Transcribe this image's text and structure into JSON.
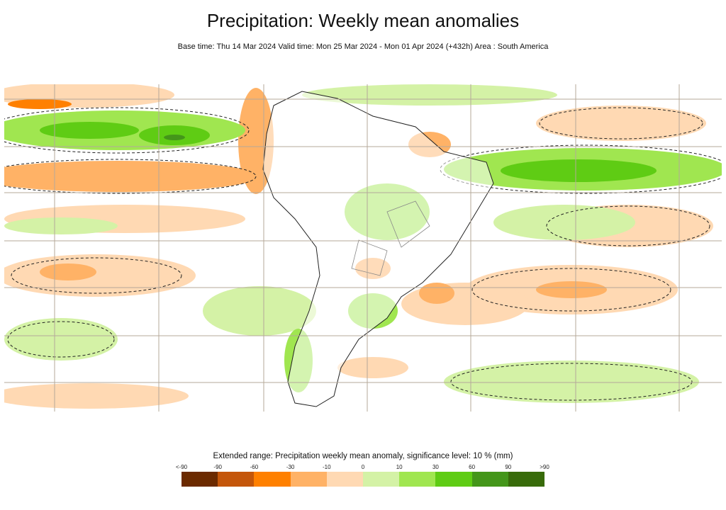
{
  "title": "Precipitation: Weekly mean anomalies",
  "subtitle": "Base time: Thu 14 Mar 2024 Valid time: Mon 25 Mar 2024 - Mon 01 Apr 2024 (+432h) Area : South America",
  "legend": {
    "title": "Extended range: Precipitation weekly mean anomaly, significance level: 10 % (mm)",
    "ticks": [
      "<-90",
      "-90",
      "-60",
      "-30",
      "-10",
      "0",
      "10",
      "30",
      "60",
      "90",
      ">90"
    ],
    "colors": [
      "#6b2a00",
      "#c4560a",
      "#ff8000",
      "#ffb266",
      "#ffd9b3",
      "#d4f2a6",
      "#a0e650",
      "#5fcc14",
      "#44961a",
      "#386b0a"
    ]
  },
  "map": {
    "area": "South America",
    "contour_style": "dashed",
    "land_color": "#ffffff",
    "grid_color": "#b5a89a"
  }
}
